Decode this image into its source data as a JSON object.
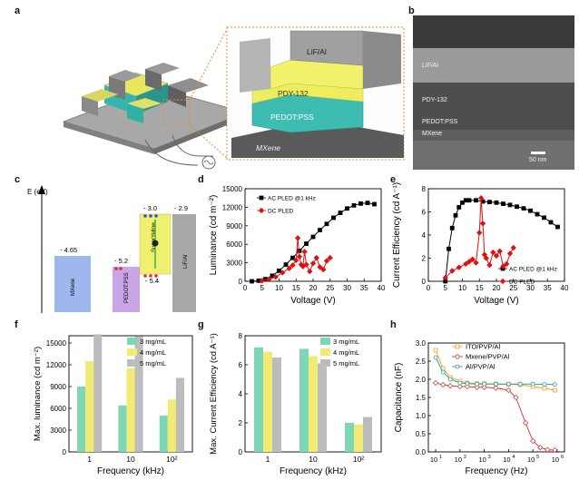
{
  "panel_letters": {
    "a": "a",
    "b": "b",
    "c": "c",
    "d": "d",
    "e": "e",
    "f": "f",
    "g": "g",
    "h": "h"
  },
  "panel_a": {
    "layers": [
      "LiF/Al",
      "PDY-132",
      "PEDOT:PSS",
      "MXene"
    ]
  },
  "panel_b": {
    "layers": [
      "LiF/Al",
      "PDY-132",
      "PEDOT:PSS",
      "MXene"
    ],
    "scalebar": "50 nm"
  },
  "panel_c": {
    "ylabel": "E (eV)",
    "levels": {
      "mxene": "- 4.65",
      "pedot": "- 5.2",
      "sy_top": "- 3.0",
      "sy_bottom": "- 5.4",
      "lif": "- 2.9"
    },
    "blocks": [
      "MXene",
      "PEDOT:PSS",
      "SuperYellow",
      "LiF/Al"
    ],
    "colors": {
      "mxene": "#9fb7ec",
      "pedot": "#c9a5e6",
      "sy": "#f0f070",
      "lif": "#a8a8a8"
    }
  },
  "chart_data": [
    {
      "panel": "d",
      "type": "line",
      "xlabel": "Voltage (V)",
      "ylabel": "Luminance (cd m⁻²)",
      "xlim": [
        0,
        40
      ],
      "ylim": [
        0,
        15000
      ],
      "xticks": [
        0,
        5,
        10,
        15,
        20,
        25,
        30,
        35,
        40
      ],
      "yticks": [
        0,
        3000,
        6000,
        9000,
        12000,
        15000
      ],
      "series": [
        {
          "name": "AC PLED @1 kHz",
          "color": "#000000",
          "marker": "square",
          "x": [
            2,
            4,
            6,
            8,
            10,
            12,
            14,
            16,
            18,
            20,
            22,
            24,
            26,
            28,
            30,
            32,
            34,
            36,
            38
          ],
          "y": [
            0,
            100,
            350,
            900,
            1700,
            2700,
            3800,
            4950,
            6100,
            7200,
            8300,
            9300,
            10300,
            11100,
            11800,
            12300,
            12600,
            12700,
            12500
          ]
        },
        {
          "name": "DC PLED",
          "color": "#e01010",
          "marker": "diamond",
          "x": [
            5,
            7,
            9,
            11,
            13,
            14,
            15,
            15.5,
            16,
            16.5,
            17,
            17.5,
            18,
            19,
            20,
            21,
            22,
            23,
            24,
            25
          ],
          "y": [
            100,
            300,
            700,
            1400,
            2100,
            2600,
            3400,
            7000,
            4000,
            2700,
            2400,
            4800,
            2700,
            1600,
            2900,
            3800,
            2300,
            1900,
            3300,
            3800
          ]
        }
      ]
    },
    {
      "panel": "e",
      "type": "line",
      "xlabel": "Voltage (V)",
      "ylabel": "Current Efficiency (cd A⁻¹)",
      "xlim": [
        0,
        40
      ],
      "ylim": [
        0,
        8
      ],
      "xticks": [
        0,
        5,
        10,
        15,
        20,
        25,
        30,
        35,
        40
      ],
      "yticks": [
        0,
        2,
        4,
        6,
        8
      ],
      "series": [
        {
          "name": "AC PLED @1 kHz",
          "color": "#000000",
          "marker": "square",
          "x": [
            5,
            6,
            7,
            8,
            9,
            10,
            11,
            12,
            14,
            16,
            18,
            20,
            22,
            24,
            26,
            28,
            30,
            32,
            34,
            36,
            38
          ],
          "y": [
            0,
            2.8,
            4.6,
            5.7,
            6.4,
            6.8,
            7.0,
            7.0,
            7.0,
            6.9,
            6.85,
            6.8,
            6.7,
            6.6,
            6.45,
            6.3,
            6.1,
            5.8,
            5.5,
            5.1,
            4.7
          ]
        },
        {
          "name": "DC PLED",
          "color": "#e01010",
          "marker": "diamond",
          "x": [
            5,
            7,
            9,
            11,
            12,
            13,
            14,
            15,
            15.5,
            16,
            16.5,
            17,
            18,
            19,
            20,
            21,
            22,
            23,
            24,
            25
          ],
          "y": [
            0.3,
            0.9,
            1.2,
            1.5,
            1.7,
            1.9,
            1.6,
            4.2,
            7.2,
            5.0,
            2.3,
            2.0,
            1.4,
            2.5,
            2.2,
            2.6,
            1.3,
            1.5,
            2.4,
            2.9
          ]
        }
      ]
    },
    {
      "panel": "f",
      "type": "bar",
      "xlabel": "Frequency (kHz)",
      "ylabel": "Max. luminance (cd m⁻²)",
      "categories": [
        "1",
        "10",
        "10²"
      ],
      "ylim": [
        0,
        16000
      ],
      "yticks": [
        0,
        3000,
        6000,
        9000,
        12000,
        15000
      ],
      "series": [
        {
          "name": "3 mg/mL",
          "color": "#7fd6b4",
          "values": [
            9000,
            6400,
            5000
          ]
        },
        {
          "name": "4 mg/mL",
          "color": "#f1ea75",
          "values": [
            12500,
            11500,
            7200
          ]
        },
        {
          "name": "5 mg/mL",
          "color": "#bcbcbc",
          "values": [
            16200,
            15900,
            10200
          ]
        }
      ]
    },
    {
      "panel": "g",
      "type": "bar",
      "xlabel": "Frequency (kHz)",
      "ylabel": "Max. Current Efficiency (cd A⁻¹)",
      "categories": [
        "1",
        "10",
        "10²"
      ],
      "ylim": [
        0,
        8
      ],
      "yticks": [
        0,
        2,
        4,
        6,
        8
      ],
      "series": [
        {
          "name": "3 mg/mL",
          "color": "#7fd6b4",
          "values": [
            7.2,
            7.1,
            2.0
          ]
        },
        {
          "name": "4 mg/mL",
          "color": "#f1ea75",
          "values": [
            6.9,
            6.6,
            1.9
          ]
        },
        {
          "name": "5 mg/mL",
          "color": "#bcbcbc",
          "values": [
            6.5,
            6.1,
            2.4
          ]
        }
      ]
    },
    {
      "panel": "h",
      "type": "scatter",
      "xlabel": "Frequency (Hz)",
      "ylabel": "Capacitance (nF)",
      "xscale": "log",
      "xlim": [
        5,
        2000000
      ],
      "ylim": [
        0,
        3.0
      ],
      "xticks": [
        {
          "label": "10",
          "sup": "1",
          "v": 10
        },
        {
          "label": "10",
          "sup": "2",
          "v": 100
        },
        {
          "label": "10",
          "sup": "3",
          "v": 1000
        },
        {
          "label": "10",
          "sup": "4",
          "v": 10000
        },
        {
          "label": "10",
          "sup": "5",
          "v": 100000
        },
        {
          "label": "10",
          "sup": "6",
          "v": 1000000
        }
      ],
      "yticks": [
        0,
        0.5,
        1.0,
        1.5,
        2.0,
        2.5,
        3.0
      ],
      "series": [
        {
          "name": "ITO/PVP/Al",
          "color": "#f0a030",
          "marker": "square",
          "x": [
            10,
            20,
            40,
            100,
            200,
            500,
            1000,
            3000,
            10000,
            30000,
            100000,
            300000,
            800000
          ],
          "y": [
            2.8,
            2.3,
            2.05,
            1.95,
            1.9,
            1.88,
            1.88,
            1.87,
            1.86,
            1.85,
            1.8,
            1.75,
            1.7
          ]
        },
        {
          "name": "Mxene/PVP/Al",
          "color": "#d04040",
          "marker": "diamond",
          "x": [
            10,
            20,
            40,
            100,
            200,
            500,
            1000,
            3000,
            10000,
            20000,
            50000,
            100000,
            200000,
            400000,
            800000
          ],
          "y": [
            1.9,
            1.85,
            1.82,
            1.8,
            1.8,
            1.78,
            1.78,
            1.76,
            1.7,
            1.5,
            0.8,
            0.3,
            0.12,
            0.06,
            0.05
          ]
        },
        {
          "name": "Al/PVP/Al",
          "color": "#30a0a0",
          "marker": "circle",
          "x": [
            10,
            20,
            40,
            100,
            200,
            500,
            1000,
            3000,
            10000,
            30000,
            100000,
            300000,
            800000
          ],
          "y": [
            2.6,
            2.2,
            2.0,
            1.9,
            1.88,
            1.87,
            1.87,
            1.87,
            1.87,
            1.87,
            1.87,
            1.86,
            1.86
          ]
        }
      ]
    }
  ]
}
